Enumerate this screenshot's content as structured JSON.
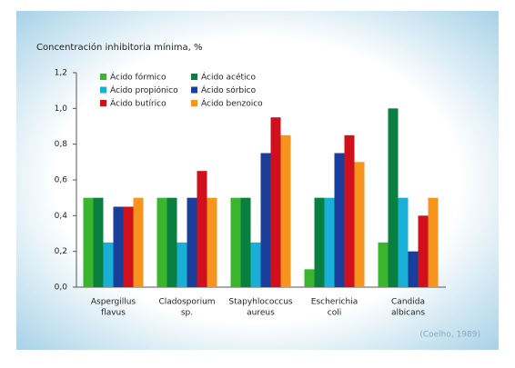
{
  "chart_data": {
    "type": "bar",
    "y_label": "Concentración inhibitoria mínima, %",
    "categories": [
      [
        "Aspergillus",
        "flavus"
      ],
      [
        "Cladosporium",
        "sp."
      ],
      [
        "Stapyhlococcus",
        "aureus"
      ],
      [
        "Escherichia",
        "coli"
      ],
      [
        "Candida",
        "albicans"
      ]
    ],
    "series": [
      {
        "name": "Ácido fórmico",
        "color": "#3cb52e",
        "values": [
          0.5,
          0.5,
          0.5,
          0.1,
          0.25
        ]
      },
      {
        "name": "Ácido acético",
        "color": "#0a8040",
        "values": [
          0.5,
          0.5,
          0.5,
          0.5,
          1.0
        ]
      },
      {
        "name": "Ácido propiónico",
        "color": "#19b0d8",
        "values": [
          0.25,
          0.25,
          0.25,
          0.5,
          0.5
        ]
      },
      {
        "name": "Ácido sórbico",
        "color": "#1a3f9a",
        "values": [
          0.45,
          0.5,
          0.75,
          0.75,
          0.2
        ]
      },
      {
        "name": "Ácido butírico",
        "color": "#d0101c",
        "values": [
          0.45,
          0.65,
          0.95,
          0.85,
          0.4
        ]
      },
      {
        "name": "Ácido benzoico",
        "color": "#f7941d",
        "values": [
          0.5,
          0.5,
          0.85,
          0.7,
          0.5
        ]
      }
    ],
    "ylim": [
      0,
      1.2
    ],
    "yticks": [
      {
        "value": 0,
        "label": "0,0"
      },
      {
        "value": 0.2,
        "label": "0,2"
      },
      {
        "value": 0.4,
        "label": "0,4"
      },
      {
        "value": 0.6,
        "label": "0,6"
      },
      {
        "value": 0.8,
        "label": "0,8"
      },
      {
        "value": 1.0,
        "label": "1,0"
      },
      {
        "value": 1.2,
        "label": "1,2"
      }
    ],
    "legend": "upper-left",
    "source": "(Coelho, 1989)"
  }
}
